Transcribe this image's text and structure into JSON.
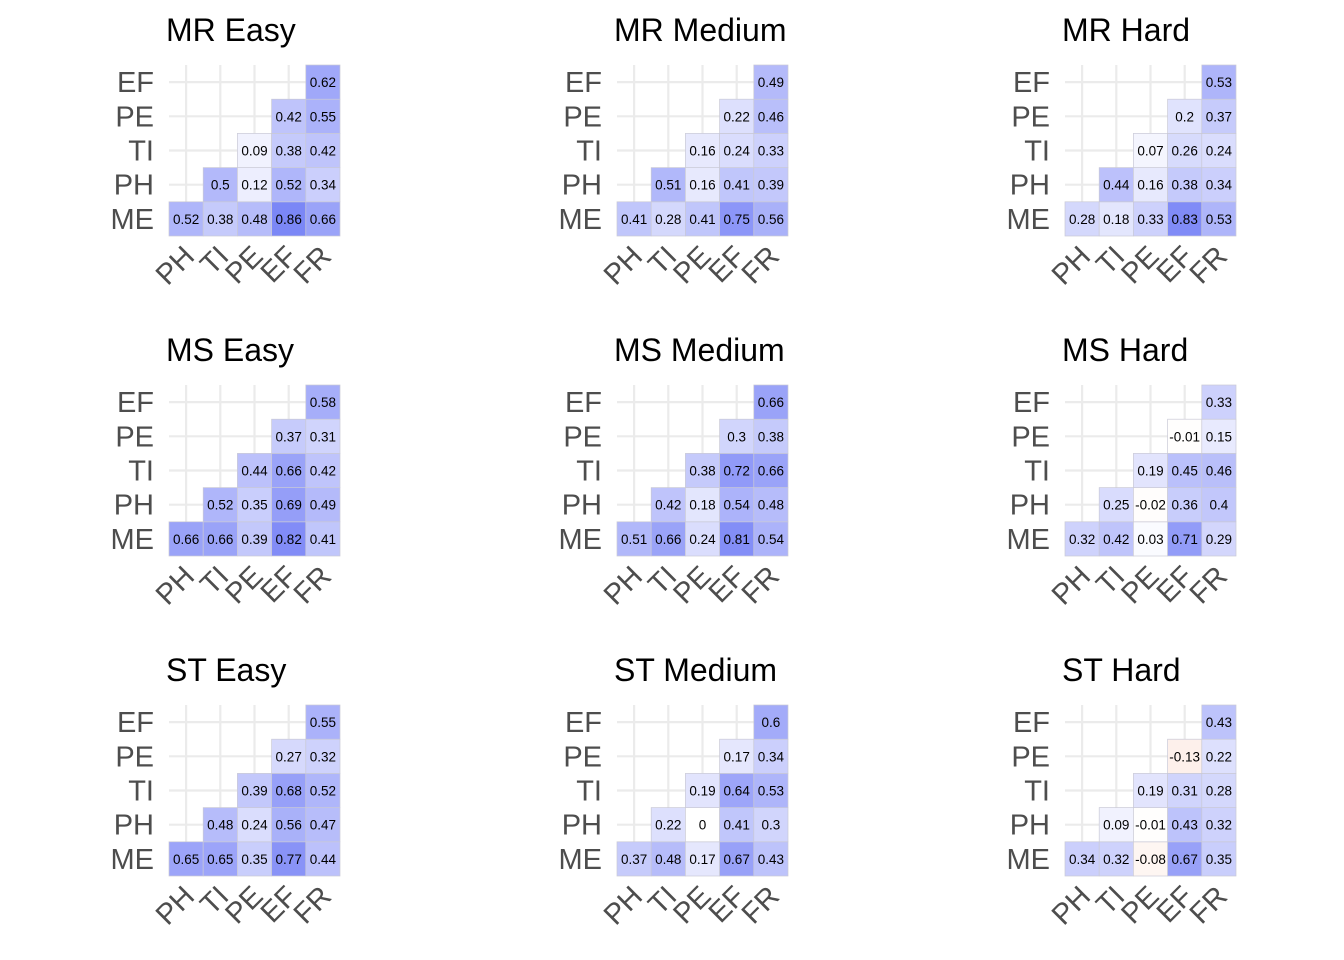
{
  "chart_data": {
    "type": "heatmap",
    "layout": "3x3 grid of lower-triangular correlation heatmaps",
    "color_scale": {
      "negative": "#ef8a62",
      "zero": "#ffffff",
      "positive": "#6673f5",
      "limits": [
        -1,
        1
      ]
    },
    "x_labels": [
      "PH",
      "TI",
      "PE",
      "EF",
      "FR"
    ],
    "y_labels": [
      "ME",
      "PH",
      "TI",
      "PE",
      "EF"
    ],
    "grid": true,
    "legend": "none",
    "panels": [
      {
        "title": "MR Easy",
        "values": [
          [
            0.52,
            0.38,
            0.48,
            0.86,
            0.66
          ],
          [
            null,
            0.5,
            0.12,
            0.52,
            0.34
          ],
          [
            null,
            null,
            0.09,
            0.38,
            0.42
          ],
          [
            null,
            null,
            null,
            0.42,
            0.55
          ],
          [
            null,
            null,
            null,
            null,
            0.62
          ]
        ]
      },
      {
        "title": "MR Medium",
        "values": [
          [
            0.41,
            0.28,
            0.41,
            0.75,
            0.56
          ],
          [
            null,
            0.51,
            0.16,
            0.41,
            0.39
          ],
          [
            null,
            null,
            0.16,
            0.24,
            0.33
          ],
          [
            null,
            null,
            null,
            0.22,
            0.46
          ],
          [
            null,
            null,
            null,
            null,
            0.49
          ]
        ]
      },
      {
        "title": "MR Hard",
        "values": [
          [
            0.28,
            0.18,
            0.33,
            0.83,
            0.53
          ],
          [
            null,
            0.44,
            0.16,
            0.38,
            0.34
          ],
          [
            null,
            null,
            0.07,
            0.26,
            0.24
          ],
          [
            null,
            null,
            null,
            0.2,
            0.37
          ],
          [
            null,
            null,
            null,
            null,
            0.53
          ]
        ]
      },
      {
        "title": "MS Easy",
        "values": [
          [
            0.66,
            0.66,
            0.39,
            0.82,
            0.41
          ],
          [
            null,
            0.52,
            0.35,
            0.69,
            0.49
          ],
          [
            null,
            null,
            0.44,
            0.66,
            0.42
          ],
          [
            null,
            null,
            null,
            0.37,
            0.31
          ],
          [
            null,
            null,
            null,
            null,
            0.58
          ]
        ]
      },
      {
        "title": "MS Medium",
        "values": [
          [
            0.51,
            0.66,
            0.24,
            0.81,
            0.54
          ],
          [
            null,
            0.42,
            0.18,
            0.54,
            0.48
          ],
          [
            null,
            null,
            0.38,
            0.72,
            0.66
          ],
          [
            null,
            null,
            null,
            0.3,
            0.38
          ],
          [
            null,
            null,
            null,
            null,
            0.66
          ]
        ]
      },
      {
        "title": "MS Hard",
        "values": [
          [
            0.32,
            0.42,
            0.03,
            0.71,
            0.29
          ],
          [
            null,
            0.25,
            -0.02,
            0.36,
            0.4
          ],
          [
            null,
            null,
            0.19,
            0.45,
            0.46
          ],
          [
            null,
            null,
            null,
            -0.01,
            0.15
          ],
          [
            null,
            null,
            null,
            null,
            0.33
          ]
        ]
      },
      {
        "title": "ST Easy",
        "values": [
          [
            0.65,
            0.65,
            0.35,
            0.77,
            0.44
          ],
          [
            null,
            0.48,
            0.24,
            0.56,
            0.47
          ],
          [
            null,
            null,
            0.39,
            0.68,
            0.52
          ],
          [
            null,
            null,
            null,
            0.27,
            0.32
          ],
          [
            null,
            null,
            null,
            null,
            0.55
          ]
        ]
      },
      {
        "title": "ST Medium",
        "values": [
          [
            0.37,
            0.48,
            0.17,
            0.67,
            0.43
          ],
          [
            null,
            0.22,
            0,
            0.41,
            0.3
          ],
          [
            null,
            null,
            0.19,
            0.64,
            0.53
          ],
          [
            null,
            null,
            null,
            0.17,
            0.34
          ],
          [
            null,
            null,
            null,
            null,
            0.6
          ]
        ]
      },
      {
        "title": "ST Hard",
        "values": [
          [
            0.34,
            0.32,
            -0.08,
            0.67,
            0.35
          ],
          [
            null,
            0.09,
            -0.01,
            0.43,
            0.32
          ],
          [
            null,
            null,
            0.19,
            0.31,
            0.28
          ],
          [
            null,
            null,
            null,
            -0.13,
            0.22
          ],
          [
            null,
            null,
            null,
            null,
            0.43
          ]
        ]
      }
    ]
  }
}
